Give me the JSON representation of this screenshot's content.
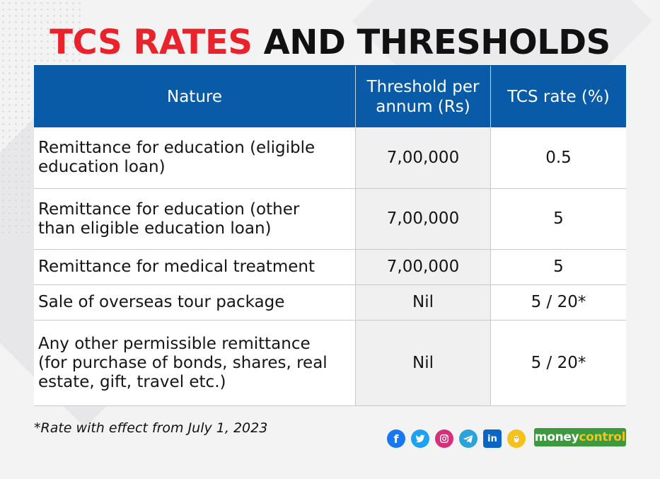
{
  "title": {
    "red": "TCS RATES",
    "black": "AND THRESHOLDS"
  },
  "table": {
    "headers": [
      "Nature",
      "Threshold per annum (Rs)",
      "TCS rate (%)"
    ],
    "rows": [
      {
        "nature": "Remittance for education (eligible\neducation loan)",
        "threshold": "7,00,000",
        "rate": "0.5"
      },
      {
        "nature": "Remittance for education (other\nthan eligible education loan)",
        "threshold": "7,00,000",
        "rate": "5"
      },
      {
        "nature": "Remittance for medical treatment",
        "threshold": "7,00,000",
        "rate": "5"
      },
      {
        "nature": "Sale of overseas tour package",
        "threshold": "Nil",
        "rate": "5 / 20*"
      },
      {
        "nature": "Any other permissible remittance\n(for purchase of bonds, shares, real\nestate, gift, travel etc.)",
        "threshold": "Nil",
        "rate": "5 / 20*"
      }
    ]
  },
  "footnote": "*Rate with effect from July 1, 2023",
  "social_icons": [
    {
      "name": "facebook-icon",
      "color": "#1877f2",
      "glyph": "f"
    },
    {
      "name": "twitter-icon",
      "color": "#1da1f2",
      "glyph": ""
    },
    {
      "name": "instagram-icon",
      "color": "#d6307a",
      "glyph": ""
    },
    {
      "name": "telegram-icon",
      "color": "#2aa3db",
      "glyph": ""
    },
    {
      "name": "linkedin-icon",
      "color": "#0a66c2",
      "glyph": "in"
    },
    {
      "name": "koo-icon",
      "color": "#f4c21c",
      "glyph": ""
    }
  ],
  "brand": {
    "part1": "money",
    "part2": "control",
    "color": "#3b9a3e"
  },
  "colors": {
    "header_bg": "#0a5ba7",
    "title_red": "#e8232b"
  }
}
